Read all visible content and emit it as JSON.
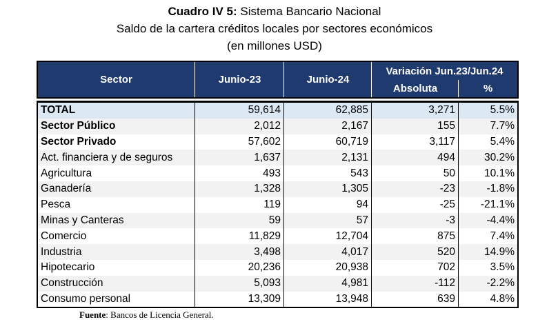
{
  "title": {
    "bold": "Cuadro IV 5:",
    "rest": " Sistema Bancario Nacional",
    "line2": "Saldo de la cartera créditos locales por sectores económicos",
    "line3": "(en millones USD)"
  },
  "headers": {
    "sector": "Sector",
    "jun23": "Junio-23",
    "jun24": "Junio-24",
    "variacion": "Variación Jun.23/Jun.24",
    "absoluta": "Absoluta",
    "pct": "%"
  },
  "header_color": "#1f3a6e",
  "rows": [
    [
      "TOTAL",
      "59,614",
      "62,885",
      "3,271",
      "5.5%"
    ],
    [
      "Sector Público",
      "2,012",
      "2,167",
      "155",
      "7.7%"
    ],
    [
      "Sector Privado",
      "57,602",
      "60,719",
      "3,117",
      "5.4%"
    ],
    [
      "Act. financiera y de seguros",
      "1,637",
      "2,131",
      "494",
      "30.2%"
    ],
    [
      "Agricultura",
      "493",
      "543",
      "50",
      "10.1%"
    ],
    [
      "Ganadería",
      "1,328",
      "1,305",
      "-23",
      "-1.8%"
    ],
    [
      "Pesca",
      "119",
      "94",
      "-25",
      "-21.1%"
    ],
    [
      "Minas y Canteras",
      "59",
      "57",
      "-3",
      "-4.4%"
    ],
    [
      "Comercio",
      "11,829",
      "12,704",
      "875",
      "7.4%"
    ],
    [
      "Industria",
      "3,498",
      "4,017",
      "520",
      "14.9%"
    ],
    [
      "Hipotecario",
      "20,236",
      "20,938",
      "702",
      "3.5%"
    ],
    [
      "Construcción",
      "5,093",
      "4,981",
      "-112",
      "-2.2%"
    ],
    [
      "Consumo personal",
      "13,309",
      "13,948",
      "639",
      "4.8%"
    ]
  ],
  "footer": {
    "label": "Fuente",
    "text": ":  Bancos de Licencia General."
  }
}
